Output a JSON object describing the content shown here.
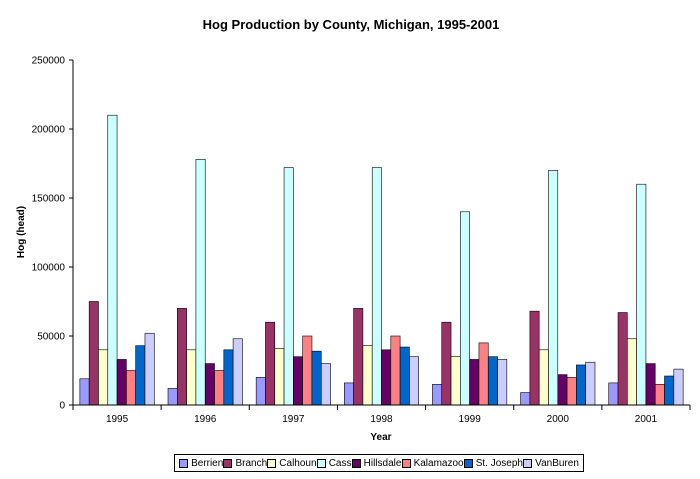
{
  "chart_data": {
    "type": "bar",
    "title": "Hog Production by County, Michigan, 1995-2001",
    "xlabel": "Year",
    "ylabel": "Hog (head)",
    "ylim": [
      0,
      250000
    ],
    "yticks": [
      "0",
      "50000",
      "100000",
      "150000",
      "200000",
      "250000"
    ],
    "grid": false,
    "legend_position": "bottom",
    "categories": [
      "1995",
      "1996",
      "1997",
      "1998",
      "1999",
      "2000",
      "2001"
    ],
    "series": [
      {
        "name": "Berrien",
        "color": "#9999ff",
        "values": [
          19000,
          12000,
          20000,
          16000,
          15000,
          9000,
          16000
        ]
      },
      {
        "name": "Branch",
        "color": "#993366",
        "values": [
          75000,
          70000,
          60000,
          70000,
          60000,
          68000,
          67000
        ]
      },
      {
        "name": "Calhoun",
        "color": "#ffffcc",
        "values": [
          40000,
          40000,
          41000,
          43000,
          35000,
          40000,
          48000
        ]
      },
      {
        "name": "Cass",
        "color": "#ccffff",
        "values": [
          210000,
          178000,
          172000,
          172000,
          140000,
          170000,
          160000
        ]
      },
      {
        "name": "Hillsdale",
        "color": "#660066",
        "values": [
          33000,
          30000,
          35000,
          40000,
          33000,
          22000,
          30000
        ]
      },
      {
        "name": "Kalamazoo",
        "color": "#ff8080",
        "values": [
          25000,
          25000,
          50000,
          50000,
          45000,
          20000,
          15000
        ]
      },
      {
        "name": "St. Joseph",
        "color": "#0066cc",
        "values": [
          43000,
          40000,
          39000,
          42000,
          35000,
          29000,
          21000
        ]
      },
      {
        "name": "VanBuren",
        "color": "#ccccff",
        "values": [
          52000,
          48000,
          30000,
          35000,
          33000,
          31000,
          26000
        ]
      }
    ]
  }
}
